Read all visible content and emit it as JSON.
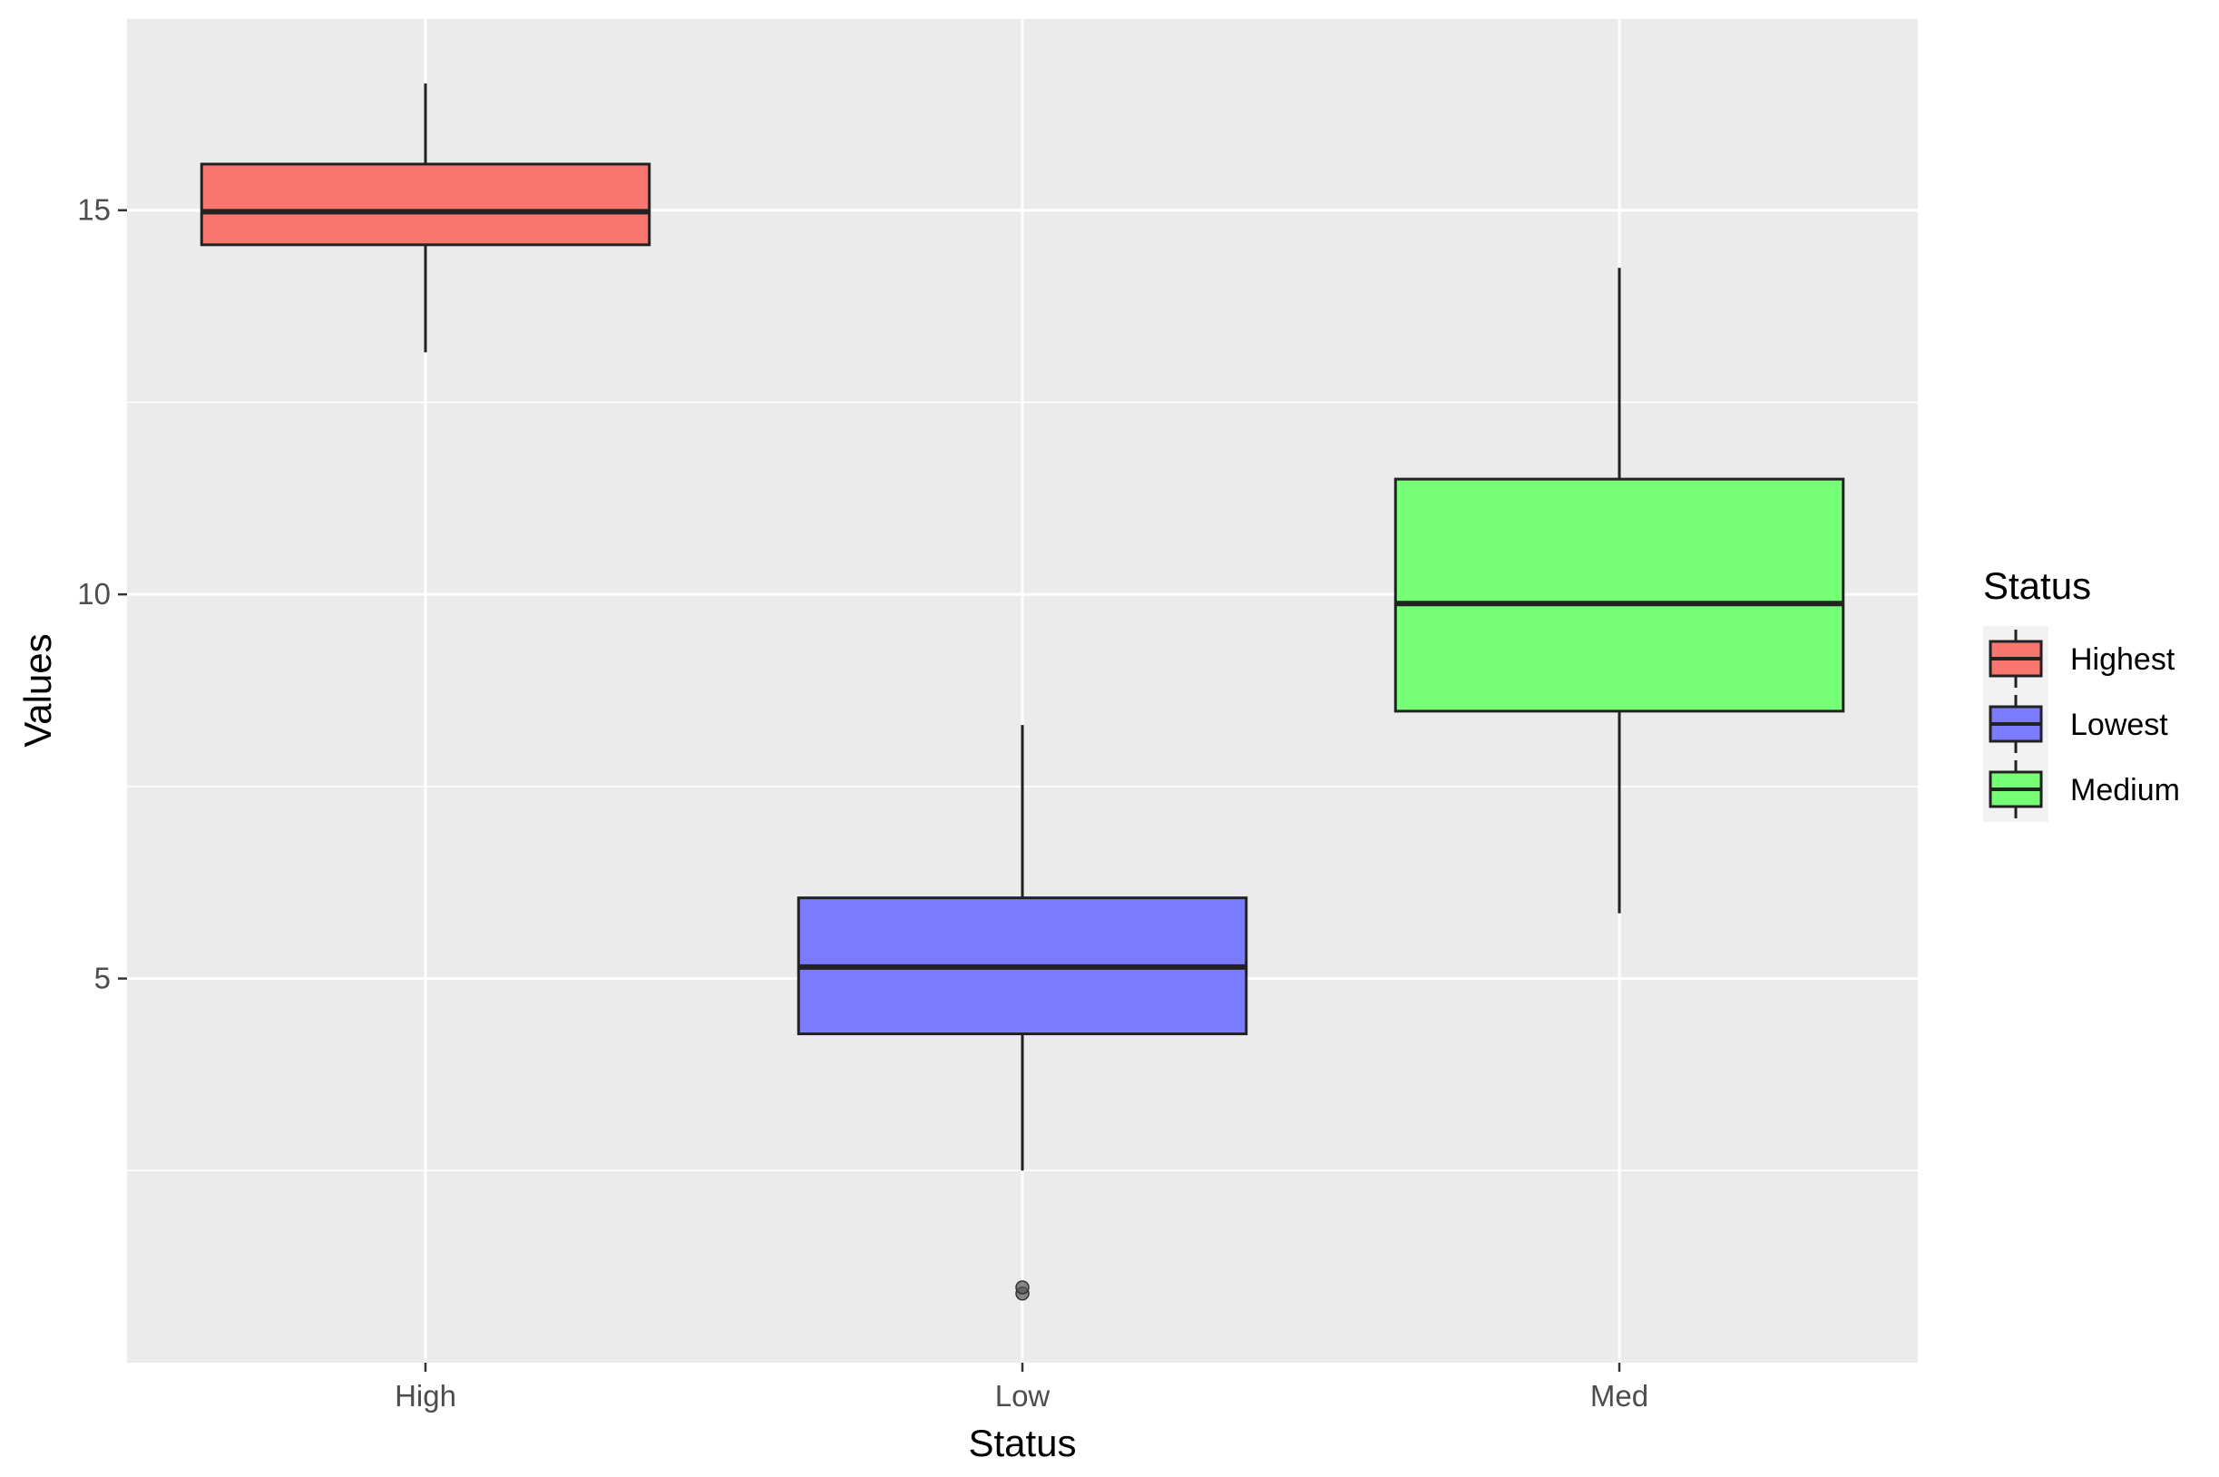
{
  "chart_data": {
    "type": "boxplot",
    "xlabel": "Status",
    "ylabel": "Values",
    "ylim": [
      0.0,
      17.5
    ],
    "yticks": [
      5,
      10,
      15
    ],
    "grid": true,
    "legend": {
      "title": "Status",
      "placement": "right",
      "entries": [
        {
          "label": "Highest",
          "color": "#F8766D"
        },
        {
          "label": "Lowest",
          "color": "#7B7BFF"
        },
        {
          "label": "Medium",
          "color": "#76FF76"
        }
      ]
    },
    "categories": [
      "High",
      "Low",
      "Med"
    ],
    "boxes": [
      {
        "category": "High",
        "legend": "Highest",
        "color": "#F8766D",
        "min": 13.15,
        "q1": 14.55,
        "median": 14.98,
        "q3": 15.6,
        "max": 16.65,
        "outliers": []
      },
      {
        "category": "Low",
        "legend": "Lowest",
        "color": "#7B7BFF",
        "min": 2.5,
        "q1": 4.28,
        "median": 5.15,
        "q3": 6.05,
        "max": 8.3,
        "outliers": [
          0.9,
          0.98
        ]
      },
      {
        "category": "Med",
        "legend": "Medium",
        "color": "#76FF76",
        "min": 5.85,
        "q1": 8.48,
        "median": 9.88,
        "q3": 11.5,
        "max": 14.25,
        "outliers": []
      }
    ]
  }
}
